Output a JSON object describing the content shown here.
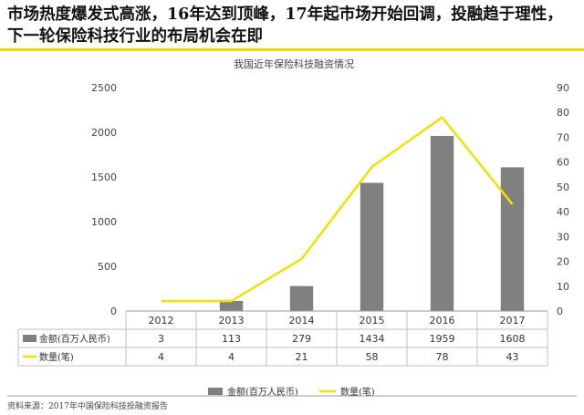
{
  "headline": "市场热度爆发式高涨，16年达到顶峰，17年起市场开始回调，投融趋于理性，下一轮保险科技行业的布局机会在即",
  "colors": {
    "accent": "#f5dc00",
    "bar": "#808080",
    "line": "#f2e000",
    "text": "#222222",
    "grid": "#d9d9d9"
  },
  "chart_data": {
    "type": "bar",
    "title": "我国近年保险科技融资情况",
    "categories": [
      "2012",
      "2013",
      "2014",
      "2015",
      "2016",
      "2017"
    ],
    "series": [
      {
        "name": "金额(百万人民币)",
        "type": "bar",
        "axis": "left",
        "values": [
          3,
          113,
          279,
          1434,
          1959,
          1608
        ],
        "color": "#808080"
      },
      {
        "name": "数量(笔)",
        "type": "line",
        "axis": "right",
        "values": [
          4,
          4,
          21,
          58,
          78,
          43
        ],
        "color": "#f2e000"
      }
    ],
    "y_left": {
      "range": [
        0,
        2500
      ],
      "ticks": [
        "0",
        "500",
        "1000",
        "1500",
        "2000",
        "2500"
      ]
    },
    "y_right": {
      "range": [
        0,
        90
      ],
      "ticks": [
        "0",
        "10",
        "20",
        "30",
        "40",
        "50",
        "60",
        "70",
        "80",
        "90"
      ]
    },
    "data_table": true,
    "grid": false,
    "legend": "bottom"
  },
  "footnote": "资料来源：2017年中国保险科技投融资报告"
}
